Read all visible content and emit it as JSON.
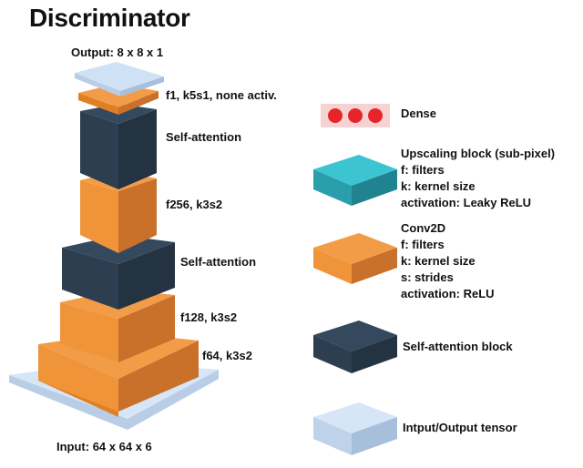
{
  "title": "Discriminator",
  "stack": {
    "output_label": "Output: 8 x 8 x 1",
    "input_label": "Input: 64 x 64 x 6",
    "layers": [
      {
        "label": "f1, k5s1, none activ."
      },
      {
        "label": "Self-attention"
      },
      {
        "label": "f256, k3s2"
      },
      {
        "label": "Self-attention"
      },
      {
        "label": "f128, k3s2"
      },
      {
        "label": "f64, k3s2"
      }
    ]
  },
  "legend": {
    "dense": {
      "label": "Dense"
    },
    "upscaling": {
      "lines": [
        "Upscaling block (sub-pixel)",
        "f: filters",
        "k: kernel size",
        "activation: Leaky ReLU"
      ]
    },
    "conv": {
      "lines": [
        "Conv2D",
        "f: filters",
        "k: kernel size",
        "s: strides",
        "activation: ReLU"
      ]
    },
    "attention": {
      "label": "Self-attention block"
    },
    "tensor": {
      "label": "Intput/Output tensor"
    }
  },
  "colors": {
    "orange": "#f0943a",
    "dark": "#2c3e50",
    "teal": "#2fb3c0",
    "light_blue": "#cfe2f5",
    "dense_red": "#e8242b"
  }
}
